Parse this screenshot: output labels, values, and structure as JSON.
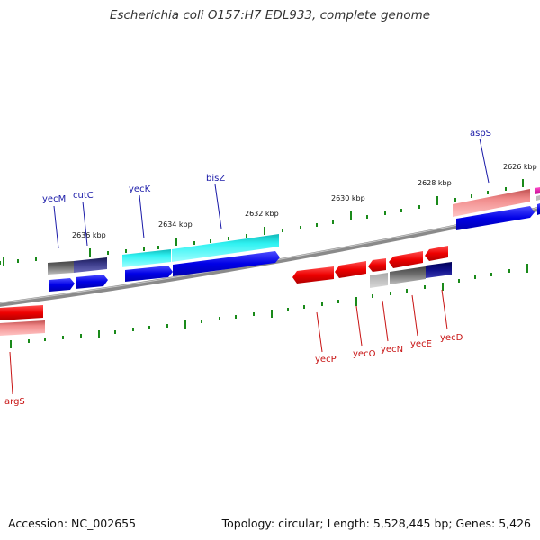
{
  "title": "Escherichia coli O157:H7 EDL933, complete genome",
  "footer": {
    "accession": "Accession: NC_002655",
    "summary": "Topology: circular; Length: 5,528,445 bp; Genes: 5,426"
  },
  "colors": {
    "backbone": "#8a8a8a",
    "tick": "#1a8a1a",
    "forward_label": "#1a1aa8",
    "reverse_label": "#c81414"
  },
  "kbp_labels": [
    "2626 kbp",
    "2628 kbp",
    "2630 kbp",
    "2632 kbp",
    "2634 kbp",
    "2636 kbp"
  ],
  "gene_labels": {
    "forward": [
      "aspS",
      "bisZ",
      "yecK",
      "cutC",
      "yecM"
    ],
    "reverse": [
      "yecD",
      "yecE",
      "yecN",
      "yecO",
      "yecP",
      "argS"
    ]
  }
}
